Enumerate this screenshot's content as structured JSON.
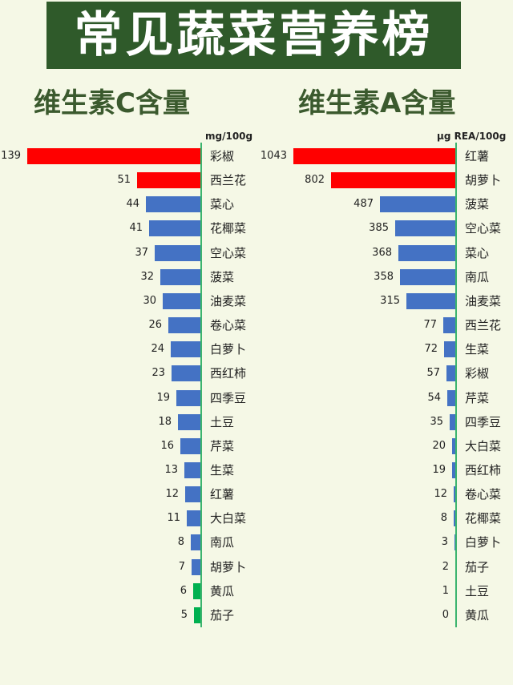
{
  "header": {
    "title": "常见蔬菜营养榜"
  },
  "colors": {
    "banner_bg": "#2f5a2a",
    "title_text": "#3b5a2e",
    "background": "#f5f8e6",
    "red": "#ff0000",
    "blue": "#4472c4",
    "green": "#00b050",
    "axis": "#3cb46e"
  },
  "chart_data": [
    {
      "type": "bar",
      "orientation": "horizontal",
      "title": "维生素C含量",
      "unit": "mg/100g",
      "categories": [
        "彩椒",
        "西兰花",
        "菜心",
        "花椰菜",
        "空心菜",
        "菠菜",
        "油麦菜",
        "卷心菜",
        "白萝卜",
        "西红柿",
        "四季豆",
        "土豆",
        "芹菜",
        "生菜",
        "红薯",
        "大白菜",
        "南瓜",
        "胡萝卜",
        "黄瓜",
        "茄子"
      ],
      "values": [
        139,
        51,
        44,
        41,
        37,
        32,
        30,
        26,
        24,
        23,
        19,
        18,
        16,
        13,
        12,
        11,
        8,
        7,
        6,
        5
      ],
      "bar_colors": [
        "red",
        "red",
        "blue",
        "blue",
        "blue",
        "blue",
        "blue",
        "blue",
        "blue",
        "blue",
        "blue",
        "blue",
        "blue",
        "blue",
        "blue",
        "blue",
        "blue",
        "blue",
        "green",
        "green"
      ],
      "xlim": [
        0,
        139
      ]
    },
    {
      "type": "bar",
      "orientation": "horizontal",
      "title": "维生素A含量",
      "unit": "μg REA/100g",
      "categories": [
        "红薯",
        "胡萝卜",
        "菠菜",
        "空心菜",
        "菜心",
        "南瓜",
        "油麦菜",
        "西兰花",
        "生菜",
        "彩椒",
        "芹菜",
        "四季豆",
        "大白菜",
        "西红柿",
        "卷心菜",
        "花椰菜",
        "白萝卜",
        "茄子",
        "土豆",
        "黄瓜"
      ],
      "values": [
        1043,
        802,
        487,
        385,
        368,
        358,
        315,
        77,
        72,
        57,
        54,
        35,
        20,
        19,
        12,
        8,
        3,
        2,
        1,
        0
      ],
      "bar_colors": [
        "red",
        "red",
        "blue",
        "blue",
        "blue",
        "blue",
        "blue",
        "blue",
        "blue",
        "blue",
        "blue",
        "blue",
        "blue",
        "blue",
        "blue",
        "blue",
        "blue",
        "blue",
        "blue",
        "blue"
      ],
      "xlim": [
        0,
        1043
      ]
    }
  ]
}
